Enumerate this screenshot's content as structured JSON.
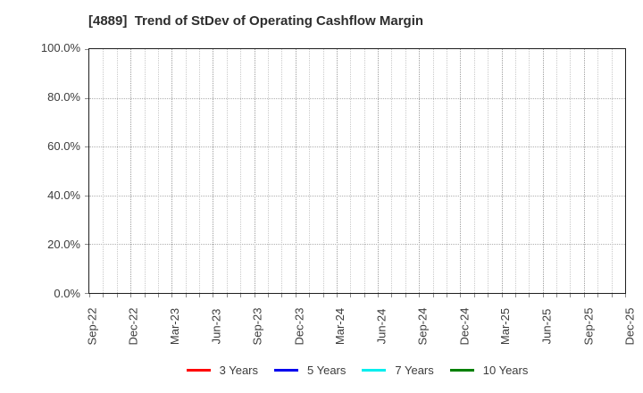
{
  "chart": {
    "title": "[4889]  Trend of StDev of Operating Cashflow Margin",
    "y_axis": {
      "ticks": [
        "100.0%",
        "80.0%",
        "60.0%",
        "40.0%",
        "20.0%",
        "0.0%"
      ]
    },
    "x_axis": {
      "ticks": [
        "Sep-22",
        "Dec-22",
        "Mar-23",
        "Jun-23",
        "Sep-23",
        "Dec-23",
        "Mar-24",
        "Jun-24",
        "Sep-24",
        "Dec-24",
        "Mar-25",
        "Jun-25",
        "Sep-25",
        "Dec-25"
      ]
    },
    "legend": [
      {
        "label": "3 Years",
        "color": "#ff0000"
      },
      {
        "label": "5 Years",
        "color": "#0000ee"
      },
      {
        "label": "7 Years",
        "color": "#00eeee"
      },
      {
        "label": "10 Years",
        "color": "#008000"
      }
    ]
  },
  "chart_data": {
    "type": "line",
    "title": "[4889] Trend of StDev of Operating Cashflow Margin",
    "x_tick_labels": [
      "Sep-22",
      "Dec-22",
      "Mar-23",
      "Jun-23",
      "Sep-23",
      "Dec-23",
      "Mar-24",
      "Jun-24",
      "Sep-24",
      "Dec-24",
      "Mar-25",
      "Jun-25",
      "Sep-25",
      "Dec-25"
    ],
    "minor_x_gridlines_per_interval": 3,
    "ylim": [
      0,
      100
    ],
    "y_tick_interval": 20,
    "y_unit": "%",
    "grid": true,
    "legend_position": "bottom",
    "series": [
      {
        "name": "3 Years",
        "color": "#ff0000",
        "values": []
      },
      {
        "name": "5 Years",
        "color": "#0000ee",
        "values": []
      },
      {
        "name": "7 Years",
        "color": "#00eeee",
        "values": []
      },
      {
        "name": "10 Years",
        "color": "#008000",
        "values": []
      }
    ],
    "note": "No data series are plotted; the chart grid is empty."
  }
}
